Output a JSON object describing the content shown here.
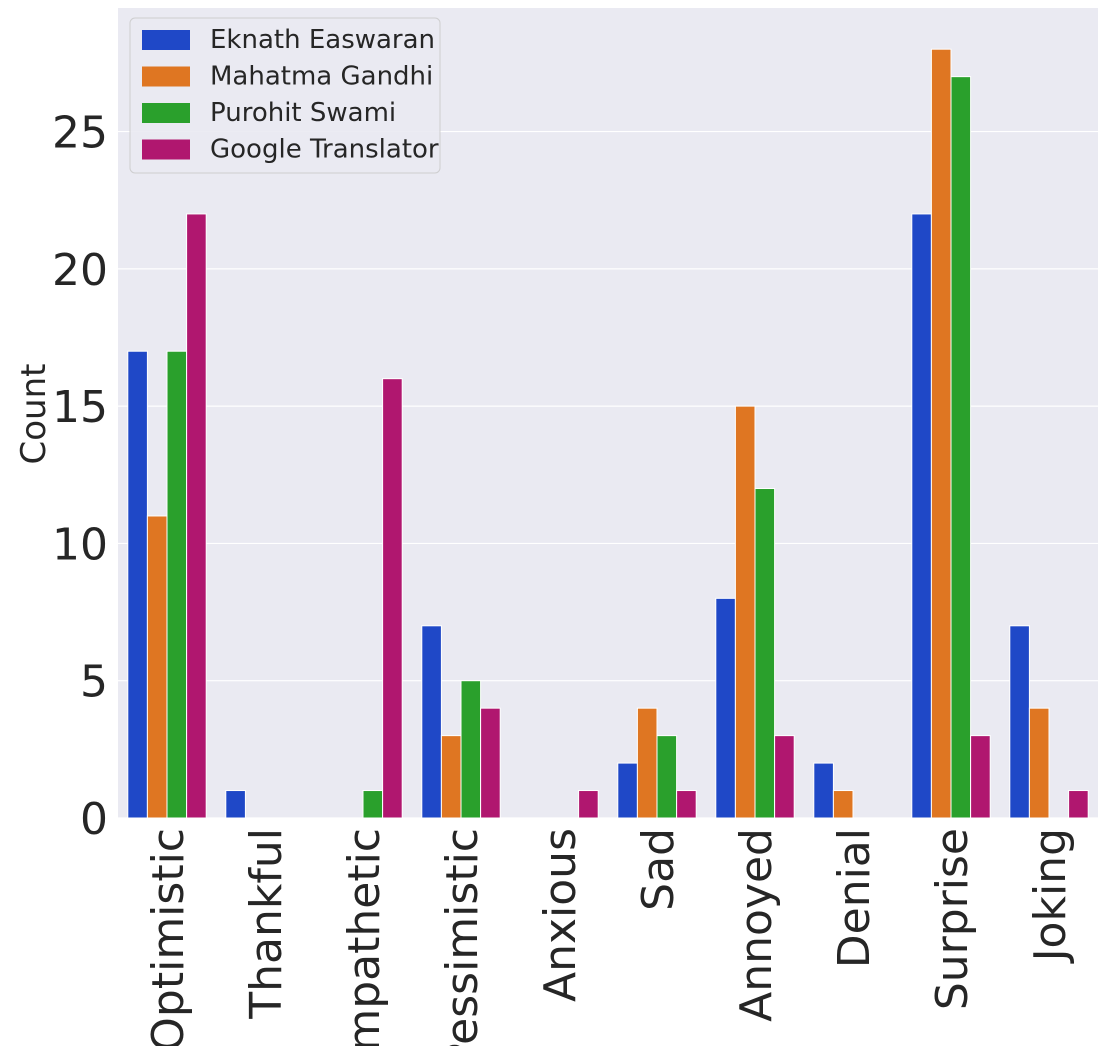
{
  "chart_data": {
    "type": "bar",
    "title": "",
    "xlabel": "",
    "ylabel": "Count",
    "ylim": [
      0,
      29.5
    ],
    "yticks": [
      0,
      5,
      10,
      15,
      20,
      25
    ],
    "grid": true,
    "legend_position": "top-left",
    "categories": [
      "Optimistic",
      "Thankful",
      "Empathetic",
      "Pessimistic",
      "Anxious",
      "Sad",
      "Annoyed",
      "Denial",
      "Surprise",
      "Joking"
    ],
    "series": [
      {
        "name": "Eknath Easwaran",
        "color": "#1f48c7",
        "values": [
          17,
          1,
          0,
          7,
          0,
          2,
          8,
          2,
          22,
          7
        ]
      },
      {
        "name": "Mahatma Gandhi",
        "color": "#df7622",
        "values": [
          11,
          0,
          0,
          3,
          0,
          4,
          15,
          1,
          28,
          4
        ]
      },
      {
        "name": "Purohit Swami",
        "color": "#2aa02c",
        "values": [
          17,
          0,
          1,
          5,
          0,
          3,
          12,
          0,
          27,
          0
        ]
      },
      {
        "name": "Google Translator",
        "color": "#b0176f",
        "values": [
          22,
          0,
          16,
          4,
          1,
          1,
          3,
          0,
          3,
          1
        ]
      }
    ]
  }
}
